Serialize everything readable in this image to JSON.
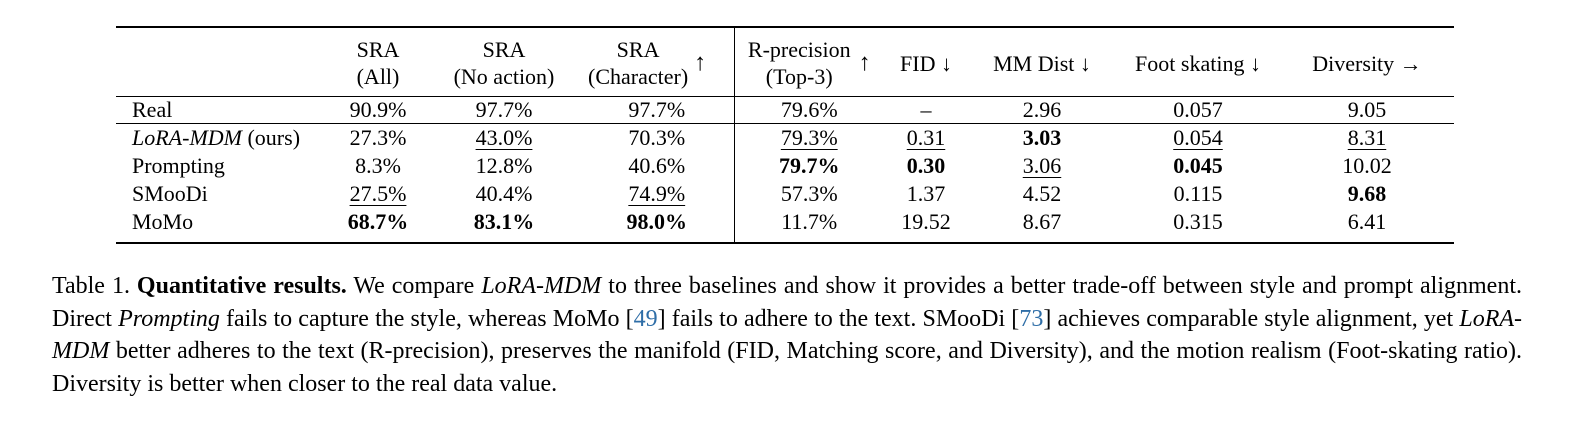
{
  "table": {
    "header": {
      "method": "",
      "sra_all": [
        "SRA",
        "(All)"
      ],
      "sra_noaction": [
        "SRA",
        "(No action)"
      ],
      "sra_character": [
        "SRA",
        "(Character)"
      ],
      "sra_arrow": "↑",
      "rprec": [
        "R-precision",
        "(Top-3)"
      ],
      "rprec_arrow": "↑",
      "fid": "FID ↓",
      "mmdist": "MM Dist ↓",
      "foot": "Foot skating ↓",
      "diversity": "Diversity →"
    },
    "real_row": {
      "method": "Real",
      "cells": [
        "90.9%",
        "97.7%",
        "97.7%",
        "79.6%",
        "–",
        "2.96",
        "0.057",
        "9.05"
      ]
    },
    "rows": [
      {
        "method_main": "LoRA-MDM",
        "method_suffix": " (ours)",
        "cells": [
          "27.3%",
          "43.0%",
          "70.3%",
          "79.3%",
          "0.31",
          "3.03",
          "0.054",
          "8.31"
        ],
        "bold": [
          false,
          false,
          false,
          false,
          false,
          true,
          false,
          false
        ],
        "underline": [
          false,
          true,
          false,
          true,
          true,
          false,
          true,
          true
        ]
      },
      {
        "method_main": "Prompting",
        "method_suffix": "",
        "cells": [
          "8.3%",
          "12.8%",
          "40.6%",
          "79.7%",
          "0.30",
          "3.06",
          "0.045",
          "10.02"
        ],
        "bold": [
          false,
          false,
          false,
          true,
          true,
          false,
          true,
          false
        ],
        "underline": [
          false,
          false,
          false,
          false,
          false,
          true,
          false,
          false
        ]
      },
      {
        "method_main": "SMooDi",
        "method_suffix": "",
        "cells": [
          "27.5%",
          "40.4%",
          "74.9%",
          "57.3%",
          "1.37",
          "4.52",
          "0.115",
          "9.68"
        ],
        "bold": [
          false,
          false,
          false,
          false,
          false,
          false,
          false,
          true
        ],
        "underline": [
          true,
          false,
          true,
          false,
          false,
          false,
          false,
          false
        ]
      },
      {
        "method_main": "MoMo",
        "method_suffix": "",
        "cells": [
          "68.7%",
          "83.1%",
          "98.0%",
          "11.7%",
          "19.52",
          "8.67",
          "0.315",
          "6.41"
        ],
        "bold": [
          true,
          true,
          true,
          false,
          false,
          false,
          false,
          false
        ],
        "underline": [
          false,
          false,
          false,
          false,
          false,
          false,
          false,
          false
        ]
      }
    ]
  },
  "caption": {
    "label": "Table 1. ",
    "title": "Quantitative results.",
    "s1": " We compare ",
    "lora1": "LoRA-MDM",
    "s2": " to three baselines and show it provides a better trade-off between style and prompt alignment. Direct ",
    "prompting": "Prompting",
    "s3": " fails to capture the style, whereas MoMo [",
    "cite1": "49",
    "s4": "] fails to adhere to the text. SMooDi [",
    "cite2": "73",
    "s5": "] achieves comparable style alignment, yet ",
    "lora2": "LoRA-MDM",
    "s6": " better adheres to the text (R-precision), preserves the manifold (FID, Matching score, and Diversity), and the motion realism (Foot-skating ratio). Diversity is better when closer to the real data value."
  }
}
